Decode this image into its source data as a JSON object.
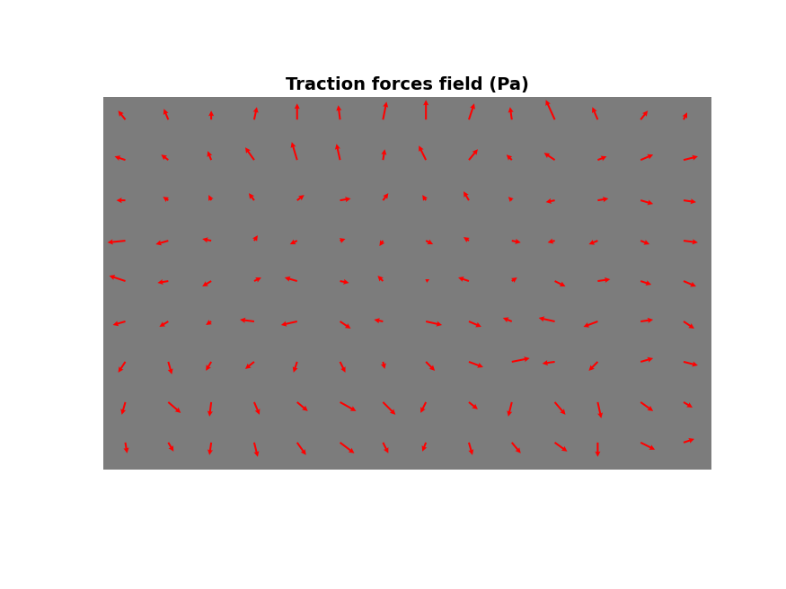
{
  "chart_data": {
    "type": "quiver",
    "title": "Traction forces field (Pa)",
    "color": "#ff0000",
    "tick_labels": false,
    "xlim": [
      0,
      680
    ],
    "ylim": [
      415,
      0
    ],
    "x": [
      25,
      73,
      121,
      169,
      217,
      265,
      313,
      361,
      409,
      457,
      505,
      553,
      601,
      649
    ],
    "y": [
      25,
      70,
      115,
      160,
      205,
      250,
      295,
      340,
      385
    ],
    "u": [
      [
        -8,
        -5,
        0,
        3,
        0,
        -2,
        4,
        0,
        6,
        -2,
        -10,
        -6,
        8,
        4
      ],
      [
        -12,
        -8,
        -4,
        -10,
        -6,
        -4,
        2,
        -8,
        10,
        -6,
        -12,
        10,
        14,
        16
      ],
      [
        -10,
        -6,
        -3,
        -6,
        8,
        12,
        6,
        -4,
        -6,
        -4,
        -10,
        12,
        14,
        14
      ],
      [
        -20,
        -14,
        -10,
        4,
        -8,
        6,
        -4,
        8,
        -6,
        10,
        -8,
        -10,
        10,
        16
      ],
      [
        -18,
        -12,
        -10,
        8,
        -14,
        10,
        -6,
        4,
        -12,
        6,
        12,
        14,
        12,
        14
      ],
      [
        -14,
        -10,
        -6,
        -16,
        -18,
        12,
        -10,
        18,
        14,
        -10,
        -18,
        -16,
        14,
        12
      ],
      [
        -8,
        4,
        -6,
        -10,
        -4,
        6,
        2,
        10,
        16,
        20,
        -14,
        -10,
        14,
        16
      ],
      [
        -4,
        14,
        -2,
        6,
        12,
        18,
        14,
        -6,
        10,
        -4,
        12,
        4,
        14,
        10
      ],
      [
        2,
        6,
        -2,
        4,
        10,
        16,
        6,
        -4,
        4,
        10,
        14,
        0,
        16,
        12
      ]
    ],
    "v": [
      [
        -10,
        -12,
        -10,
        -14,
        -18,
        -16,
        -20,
        -22,
        -18,
        -14,
        -22,
        -14,
        -10,
        -8
      ],
      [
        -4,
        -6,
        -10,
        -14,
        -20,
        -18,
        -12,
        -16,
        -12,
        -6,
        -8,
        -4,
        -6,
        -4
      ],
      [
        0,
        -4,
        -6,
        -8,
        -6,
        -2,
        -8,
        -6,
        -10,
        -4,
        2,
        -2,
        4,
        2
      ],
      [
        2,
        4,
        -2,
        -6,
        4,
        -2,
        6,
        4,
        -4,
        2,
        2,
        4,
        4,
        2
      ],
      [
        -6,
        2,
        6,
        -4,
        -4,
        2,
        -6,
        -2,
        -4,
        -4,
        6,
        -2,
        4,
        6
      ],
      [
        4,
        6,
        4,
        -2,
        4,
        8,
        -2,
        4,
        6,
        -4,
        -4,
        6,
        -2,
        8
      ],
      [
        12,
        14,
        10,
        8,
        12,
        12,
        8,
        10,
        6,
        -4,
        2,
        10,
        -4,
        4
      ],
      [
        14,
        12,
        16,
        14,
        10,
        10,
        14,
        12,
        8,
        16,
        14,
        18,
        10,
        6
      ],
      [
        12,
        10,
        14,
        16,
        14,
        12,
        12,
        10,
        14,
        12,
        10,
        16,
        8,
        -4
      ]
    ]
  }
}
